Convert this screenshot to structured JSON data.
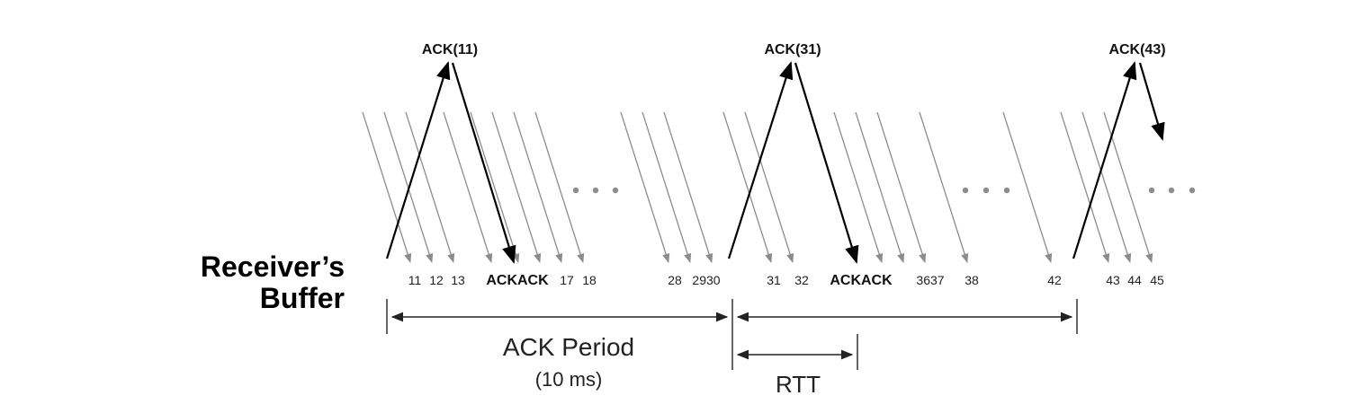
{
  "receiver": {
    "line1": "Receiver’s",
    "line2": "Buffer"
  },
  "acks": [
    {
      "label": "ACK(11)"
    },
    {
      "label": "ACK(31)"
    },
    {
      "label": "ACK(43)"
    }
  ],
  "sequence_labels": [
    "11",
    "12",
    "13",
    "ACKACK",
    "17",
    "18",
    "28",
    "2930",
    "31",
    "32",
    "ACKACK",
    "3637",
    "38",
    "42",
    "43",
    "44",
    "45"
  ],
  "ack_period": {
    "label": "ACK Period",
    "sublabel": "(10 ms)"
  },
  "rtt": {
    "label": "RTT"
  },
  "colors": {
    "packet_line": "#8c8c8c",
    "ack_line": "#000000",
    "dots": "#8c8c8c",
    "text": "#111111"
  }
}
